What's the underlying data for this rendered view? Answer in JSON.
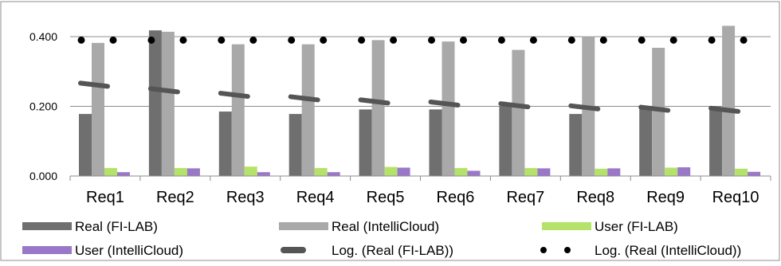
{
  "chart_data": {
    "type": "bar",
    "categories": [
      "Req1",
      "Req2",
      "Req3",
      "Req4",
      "Req5",
      "Req6",
      "Req7",
      "Req8",
      "Req9",
      "Req10"
    ],
    "yticks": [
      "0.000",
      "0.200",
      "0.400"
    ],
    "ylim": [
      0,
      0.4
    ],
    "grid": true,
    "legend_position": "bottom",
    "series": [
      {
        "name": "Real (FI-LAB)",
        "kind": "bar",
        "color": "#6f6f6f",
        "values": [
          0.178,
          0.418,
          0.185,
          0.178,
          0.191,
          0.191,
          0.2,
          0.178,
          0.196,
          0.198
        ]
      },
      {
        "name": "Real (IntelliCloud)",
        "kind": "bar",
        "color": "#a9a9a9",
        "values": [
          0.382,
          0.414,
          0.378,
          0.378,
          0.39,
          0.386,
          0.362,
          0.401,
          0.368,
          0.431
        ]
      },
      {
        "name": "User (FI-LAB)",
        "kind": "bar",
        "color": "#b5e36a",
        "values": [
          0.023,
          0.023,
          0.027,
          0.023,
          0.026,
          0.023,
          0.023,
          0.021,
          0.024,
          0.021
        ]
      },
      {
        "name": "User (IntelliCloud)",
        "kind": "bar",
        "color": "#9a77c9",
        "values": [
          0.011,
          0.022,
          0.011,
          0.011,
          0.024,
          0.015,
          0.022,
          0.022,
          0.025,
          0.012
        ]
      },
      {
        "name": "Log. (Real (FI-LAB))",
        "kind": "trend-dash",
        "color": "#555555",
        "values": [
          0.262,
          0.246,
          0.233,
          0.223,
          0.214,
          0.208,
          0.203,
          0.197,
          0.193,
          0.19
        ]
      },
      {
        "name": "Log. (Real (IntelliCloud))",
        "kind": "trend-dot",
        "color": "#000000",
        "values": [
          0.39,
          0.39,
          0.39,
          0.39,
          0.39,
          0.39,
          0.39,
          0.39,
          0.39,
          0.39
        ]
      }
    ]
  }
}
